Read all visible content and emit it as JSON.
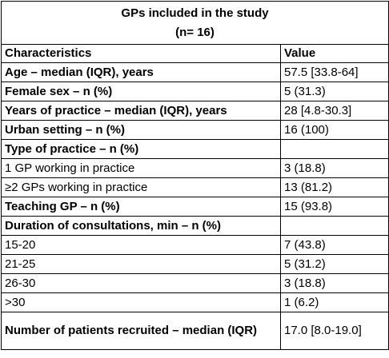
{
  "header": {
    "title": "GPs included in the study",
    "subtitle": "(n= 16)"
  },
  "table": {
    "columns": [
      "Characteristics",
      "Value"
    ],
    "rows": [
      {
        "label": "Age – median (IQR), years",
        "value": "57.5 [33.8-64]",
        "bold": true
      },
      {
        "label": "Female sex – n (%)",
        "value": "5 (31.3)",
        "bold": true
      },
      {
        "label": "Years of practice – median (IQR), years",
        "value": "28 [4.8-30.3]",
        "bold": true
      },
      {
        "label": "Urban setting – n (%)",
        "value": "16 (100)",
        "bold": true
      },
      {
        "label": "Type of practice – n (%)",
        "value": null,
        "bold": true
      },
      {
        "label": "1 GP working in practice",
        "value": "3 (18.8)",
        "bold": false
      },
      {
        "label": "≥2 GPs working in practice",
        "value": "13 (81.2)",
        "bold": false
      },
      {
        "label": "Teaching GP – n (%)",
        "value": "15 (93.8)",
        "bold": true
      },
      {
        "label": "Duration of consultations, min – n (%)",
        "value": null,
        "bold": true
      },
      {
        "label": "15-20",
        "value": "7 (43.8)",
        "bold": false
      },
      {
        "label": "21-25",
        "value": "5 (31.2)",
        "bold": false
      },
      {
        "label": "26-30",
        "value": "3 (18.8)",
        "bold": false
      },
      {
        "label": ">30",
        "value": "1 (6.2)",
        "bold": false
      },
      {
        "label": "Number of patients recruited – median (IQR)",
        "value": "17.0 [8.0-19.0]",
        "bold": true
      }
    ]
  }
}
